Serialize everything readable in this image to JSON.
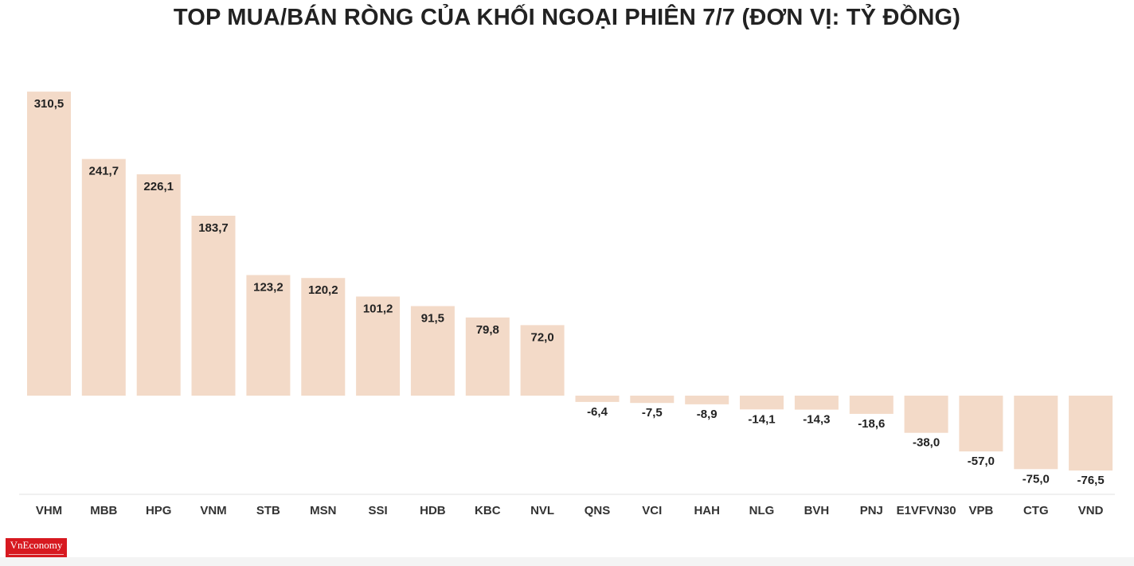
{
  "logo_text": "VnEconomy",
  "chart_data": {
    "type": "bar",
    "title": "TOP MUA/BÁN RÒNG CỦA KHỐI NGOẠI PHIÊN 7/7 (ĐƠN VỊ: TỶ ĐỒNG)",
    "xlabel": "",
    "ylabel": "",
    "categories": [
      "VHM",
      "MBB",
      "HPG",
      "VNM",
      "STB",
      "MSN",
      "SSI",
      "HDB",
      "KBC",
      "NVL",
      "QNS",
      "VCI",
      "HAH",
      "NLG",
      "BVH",
      "PNJ",
      "E1VFVN30",
      "VPB",
      "CTG",
      "VND"
    ],
    "values": [
      310.5,
      241.7,
      226.1,
      183.7,
      123.2,
      120.2,
      101.2,
      91.5,
      79.8,
      72.0,
      -6.4,
      -7.5,
      -8.9,
      -14.1,
      -14.3,
      -18.6,
      -38.0,
      -57.0,
      -75.0,
      -76.5
    ],
    "value_labels": [
      "310,5",
      "241,7",
      "226,1",
      "183,7",
      "123,2",
      "120,2",
      "101,2",
      "91,5",
      "79,8",
      "72,0",
      "-6,4",
      "-7,5",
      "-8,9",
      "-14,1",
      "-14,3",
      "-18,6",
      "-38,0",
      "-57,0",
      "-75,0",
      "-76,5"
    ],
    "bar_color": "#f3dac8",
    "grid": false,
    "legend": "none"
  }
}
